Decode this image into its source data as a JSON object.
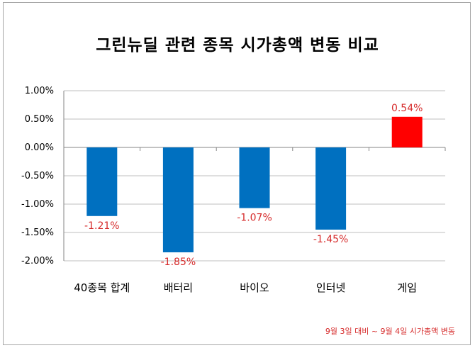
{
  "chart_data": {
    "type": "bar",
    "title": "그린뉴딜 관련 종목 시가총액 변동 비교",
    "categories": [
      "40종목 합계",
      "배터리",
      "바이오",
      "인터넷",
      "게임"
    ],
    "values": [
      -1.21,
      -1.85,
      -1.07,
      -1.45,
      0.54
    ],
    "value_labels": [
      "-1.21%",
      "-1.85%",
      "-1.07%",
      "-1.45%",
      "0.54%"
    ],
    "ylim": [
      -2.0,
      1.0
    ],
    "yticks": [
      1.0,
      0.5,
      0.0,
      -0.5,
      -1.0,
      -1.5,
      -2.0
    ],
    "ytick_labels": [
      "1.00%",
      "0.50%",
      "0.00%",
      "-0.50%",
      "-1.00%",
      "-1.50%",
      "-2.00%"
    ],
    "grid": true,
    "colors": {
      "negative": "#0070c0",
      "positive": "#ff0000",
      "label": "#d62b2b",
      "grid": "#bfbfbf"
    },
    "footnote": "9월 3일 대비 ~ 9월 4일 시가총액 변동"
  }
}
